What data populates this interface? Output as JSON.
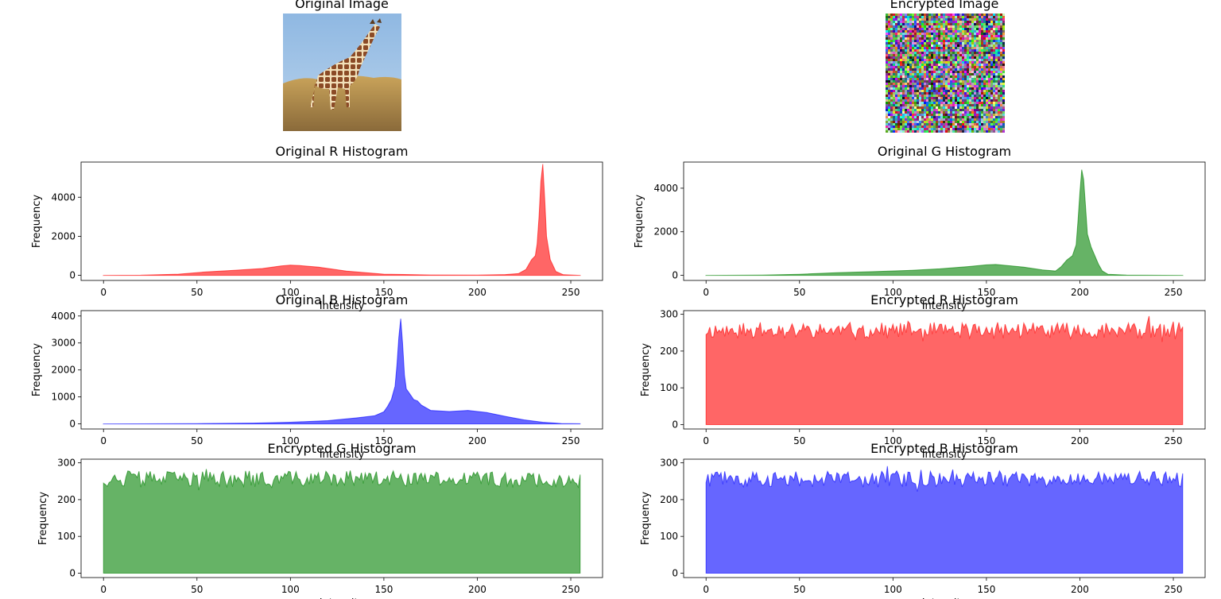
{
  "images": {
    "original": {
      "title": "Original Image"
    },
    "encrypted": {
      "title": "Encrypted Image"
    }
  },
  "colors": {
    "red": "#ff0000",
    "green": "#008000",
    "blue": "#0000ff"
  },
  "chart_data": [
    {
      "id": "orig-r",
      "type": "area",
      "title": "Original R Histogram",
      "xlabel": "Intensity",
      "ylabel": "Frequency",
      "color": "#ff0000",
      "xlim": [
        0,
        255
      ],
      "ylim": [
        0,
        5800
      ],
      "xticks": [
        0,
        50,
        100,
        150,
        200,
        250
      ],
      "yticks": [
        0,
        2000,
        4000
      ],
      "points": [
        [
          0,
          0
        ],
        [
          20,
          8
        ],
        [
          40,
          60
        ],
        [
          55,
          180
        ],
        [
          70,
          260
        ],
        [
          85,
          350
        ],
        [
          95,
          480
        ],
        [
          100,
          520
        ],
        [
          105,
          500
        ],
        [
          115,
          420
        ],
        [
          130,
          220
        ],
        [
          150,
          60
        ],
        [
          175,
          20
        ],
        [
          200,
          10
        ],
        [
          215,
          40
        ],
        [
          222,
          90
        ],
        [
          226,
          300
        ],
        [
          229,
          800
        ],
        [
          231,
          1000
        ],
        [
          232,
          1600
        ],
        [
          233,
          3000
        ],
        [
          234,
          4800
        ],
        [
          235,
          5700
        ],
        [
          236,
          4000
        ],
        [
          237,
          2000
        ],
        [
          239,
          800
        ],
        [
          242,
          200
        ],
        [
          246,
          30
        ],
        [
          255,
          0
        ]
      ]
    },
    {
      "id": "orig-g",
      "type": "area",
      "title": "Original G Histogram",
      "xlabel": "Intensity",
      "ylabel": "Frequency",
      "color": "#008000",
      "xlim": [
        0,
        255
      ],
      "ylim": [
        0,
        5200
      ],
      "xticks": [
        0,
        50,
        100,
        150,
        200,
        250
      ],
      "yticks": [
        0,
        2000,
        4000
      ],
      "points": [
        [
          0,
          0
        ],
        [
          30,
          10
        ],
        [
          50,
          50
        ],
        [
          70,
          120
        ],
        [
          90,
          170
        ],
        [
          110,
          230
        ],
        [
          125,
          300
        ],
        [
          140,
          400
        ],
        [
          150,
          480
        ],
        [
          155,
          500
        ],
        [
          160,
          460
        ],
        [
          170,
          380
        ],
        [
          180,
          250
        ],
        [
          187,
          200
        ],
        [
          190,
          400
        ],
        [
          193,
          700
        ],
        [
          196,
          900
        ],
        [
          198,
          1400
        ],
        [
          199,
          2500
        ],
        [
          200,
          3800
        ],
        [
          201,
          4850
        ],
        [
          202,
          4400
        ],
        [
          203,
          3200
        ],
        [
          204,
          1900
        ],
        [
          206,
          1300
        ],
        [
          208,
          900
        ],
        [
          210,
          500
        ],
        [
          212,
          200
        ],
        [
          215,
          50
        ],
        [
          225,
          10
        ],
        [
          255,
          0
        ]
      ]
    },
    {
      "id": "orig-b",
      "type": "area",
      "title": "Original B Histogram",
      "xlabel": "Intensity",
      "ylabel": "Frequency",
      "color": "#0000ff",
      "xlim": [
        0,
        255
      ],
      "ylim": [
        0,
        4200
      ],
      "xticks": [
        0,
        50,
        100,
        150,
        200,
        250
      ],
      "yticks": [
        0,
        1000,
        2000,
        3000,
        4000
      ],
      "points": [
        [
          0,
          0
        ],
        [
          50,
          10
        ],
        [
          80,
          30
        ],
        [
          100,
          60
        ],
        [
          120,
          120
        ],
        [
          135,
          220
        ],
        [
          145,
          300
        ],
        [
          150,
          450
        ],
        [
          152,
          650
        ],
        [
          154,
          900
        ],
        [
          156,
          1400
        ],
        [
          157,
          2200
        ],
        [
          158,
          3200
        ],
        [
          159,
          3900
        ],
        [
          160,
          3000
        ],
        [
          161,
          1800
        ],
        [
          162,
          1300
        ],
        [
          164,
          1100
        ],
        [
          166,
          900
        ],
        [
          168,
          850
        ],
        [
          170,
          700
        ],
        [
          175,
          500
        ],
        [
          185,
          460
        ],
        [
          195,
          500
        ],
        [
          205,
          420
        ],
        [
          215,
          280
        ],
        [
          225,
          150
        ],
        [
          235,
          60
        ],
        [
          245,
          15
        ],
        [
          255,
          5
        ]
      ]
    },
    {
      "id": "enc-r",
      "type": "area",
      "title": "Encrypted R Histogram",
      "xlabel": "Intensity",
      "ylabel": "Frequency",
      "color": "#ff0000",
      "xlim": [
        0,
        255
      ],
      "ylim": [
        0,
        310
      ],
      "xticks": [
        0,
        50,
        100,
        150,
        200,
        250
      ],
      "yticks": [
        0,
        100,
        200,
        300
      ],
      "noise": {
        "mean": 256,
        "amp": 22,
        "seed": 11
      }
    },
    {
      "id": "enc-g",
      "type": "area",
      "title": "Encrypted G Histogram",
      "xlabel": "Intensity",
      "ylabel": "Frequency",
      "color": "#008000",
      "xlim": [
        0,
        255
      ],
      "ylim": [
        0,
        310
      ],
      "xticks": [
        0,
        50,
        100,
        150,
        200,
        250
      ],
      "yticks": [
        0,
        100,
        200,
        300
      ],
      "noise": {
        "mean": 256,
        "amp": 22,
        "seed": 37
      }
    },
    {
      "id": "enc-b",
      "type": "area",
      "title": "Encrypted B Histogram",
      "xlabel": "Intensity",
      "ylabel": "Frequency",
      "color": "#0000ff",
      "xlim": [
        0,
        255
      ],
      "ylim": [
        0,
        310
      ],
      "xticks": [
        0,
        50,
        100,
        150,
        200,
        250
      ],
      "yticks": [
        0,
        100,
        200,
        300
      ],
      "noise": {
        "mean": 256,
        "amp": 22,
        "seed": 73
      }
    }
  ]
}
